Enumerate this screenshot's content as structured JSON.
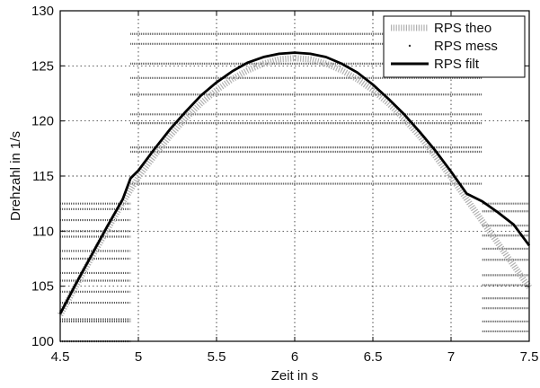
{
  "chart_data": {
    "type": "line",
    "xlabel": "Zeit in s",
    "ylabel": "Drehzahl in 1/s",
    "xlim": [
      4.5,
      7.5
    ],
    "ylim": [
      100,
      130
    ],
    "x_ticks": [
      "4.5",
      "5",
      "5.5",
      "6",
      "6.5",
      "7",
      "7.5"
    ],
    "y_ticks": [
      "100",
      "105",
      "110",
      "115",
      "120",
      "125",
      "130"
    ],
    "grid": true,
    "legend_position": "top-right",
    "series": [
      {
        "name": "RPS theo",
        "style": "dotted-thick",
        "color": "#b0b0b0",
        "x": [
          4.5,
          4.6,
          4.7,
          4.8,
          4.9,
          5.0,
          5.1,
          5.2,
          5.3,
          5.4,
          5.5,
          5.6,
          5.7,
          5.8,
          5.9,
          6.0,
          6.1,
          6.2,
          6.3,
          6.4,
          6.5,
          6.6,
          6.7,
          6.8,
          6.9,
          7.0,
          7.1,
          7.2,
          7.3,
          7.4,
          7.5
        ],
        "y": [
          102.4,
          105.0,
          107.6,
          110.1,
          112.6,
          114.9,
          116.8,
          118.6,
          120.2,
          121.6,
          122.8,
          123.8,
          124.6,
          125.2,
          125.6,
          125.7,
          125.6,
          125.2,
          124.6,
          123.8,
          122.8,
          121.6,
          120.2,
          118.6,
          116.8,
          114.9,
          112.9,
          110.9,
          108.9,
          106.9,
          104.9
        ]
      },
      {
        "name": "RPS mess",
        "style": "points",
        "color": "#333333",
        "levels": [
          {
            "y": 100.0,
            "x": [
              4.5,
              4.95
            ]
          },
          {
            "y": 101.8,
            "x": [
              4.5,
              4.95
            ]
          },
          {
            "y": 102.0,
            "x": [
              4.5,
              4.95
            ]
          },
          {
            "y": 103.5,
            "x": [
              4.5,
              4.95
            ]
          },
          {
            "y": 104.5,
            "x": [
              4.5,
              4.95
            ]
          },
          {
            "y": 105.5,
            "x": [
              4.5,
              4.95
            ]
          },
          {
            "y": 106.2,
            "x": [
              4.5,
              4.95
            ]
          },
          {
            "y": 107.5,
            "x": [
              4.5,
              4.95
            ]
          },
          {
            "y": 108.2,
            "x": [
              4.5,
              4.95
            ]
          },
          {
            "y": 109.5,
            "x": [
              4.5,
              4.95
            ]
          },
          {
            "y": 110.0,
            "x": [
              4.5,
              4.95
            ]
          },
          {
            "y": 111.0,
            "x": [
              4.5,
              4.95
            ]
          },
          {
            "y": 112.0,
            "x": [
              4.5,
              4.95
            ]
          },
          {
            "y": 112.5,
            "x": [
              4.5,
              4.95
            ]
          },
          {
            "y": 114.3,
            "x": [
              4.95,
              7.2
            ]
          },
          {
            "y": 117.2,
            "x": [
              4.95,
              7.2
            ]
          },
          {
            "y": 117.6,
            "x": [
              4.95,
              7.2
            ]
          },
          {
            "y": 119.8,
            "x": [
              4.95,
              7.2
            ]
          },
          {
            "y": 120.6,
            "x": [
              4.95,
              7.2
            ]
          },
          {
            "y": 122.4,
            "x": [
              4.95,
              7.2
            ]
          },
          {
            "y": 123.9,
            "x": [
              4.95,
              7.2
            ]
          },
          {
            "y": 125.2,
            "x": [
              4.95,
              7.2
            ]
          },
          {
            "y": 127.0,
            "x": [
              4.95,
              7.2
            ]
          },
          {
            "y": 127.9,
            "x": [
              4.95,
              7.2
            ]
          },
          {
            "y": 112.5,
            "x": [
              7.2,
              7.5
            ]
          },
          {
            "y": 111.8,
            "x": [
              7.2,
              7.5
            ]
          },
          {
            "y": 110.5,
            "x": [
              7.2,
              7.5
            ]
          },
          {
            "y": 109.6,
            "x": [
              7.2,
              7.5
            ]
          },
          {
            "y": 108.4,
            "x": [
              7.2,
              7.5
            ]
          },
          {
            "y": 107.4,
            "x": [
              7.2,
              7.5
            ]
          },
          {
            "y": 106.0,
            "x": [
              7.2,
              7.5
            ]
          },
          {
            "y": 105.1,
            "x": [
              7.2,
              7.5
            ]
          },
          {
            "y": 103.9,
            "x": [
              7.2,
              7.5
            ]
          },
          {
            "y": 103.0,
            "x": [
              7.2,
              7.5
            ]
          },
          {
            "y": 101.8,
            "x": [
              7.2,
              7.5
            ]
          },
          {
            "y": 100.9,
            "x": [
              7.2,
              7.5
            ]
          }
        ]
      },
      {
        "name": "RPS filt",
        "style": "solid-thick",
        "color": "#000000",
        "x": [
          4.5,
          4.6,
          4.7,
          4.8,
          4.9,
          4.95,
          5.0,
          5.1,
          5.2,
          5.3,
          5.4,
          5.5,
          5.6,
          5.7,
          5.8,
          5.9,
          6.0,
          6.1,
          6.2,
          6.3,
          6.4,
          6.5,
          6.6,
          6.7,
          6.8,
          6.9,
          7.0,
          7.1,
          7.2,
          7.3,
          7.4,
          7.5
        ],
        "y": [
          102.5,
          105.2,
          107.8,
          110.4,
          112.9,
          114.8,
          115.5,
          117.4,
          119.2,
          120.8,
          122.3,
          123.5,
          124.5,
          125.3,
          125.8,
          126.1,
          126.2,
          126.1,
          125.8,
          125.2,
          124.4,
          123.3,
          122.0,
          120.6,
          119.0,
          117.3,
          115.4,
          113.4,
          112.7,
          111.7,
          110.6,
          108.7
        ]
      }
    ]
  }
}
